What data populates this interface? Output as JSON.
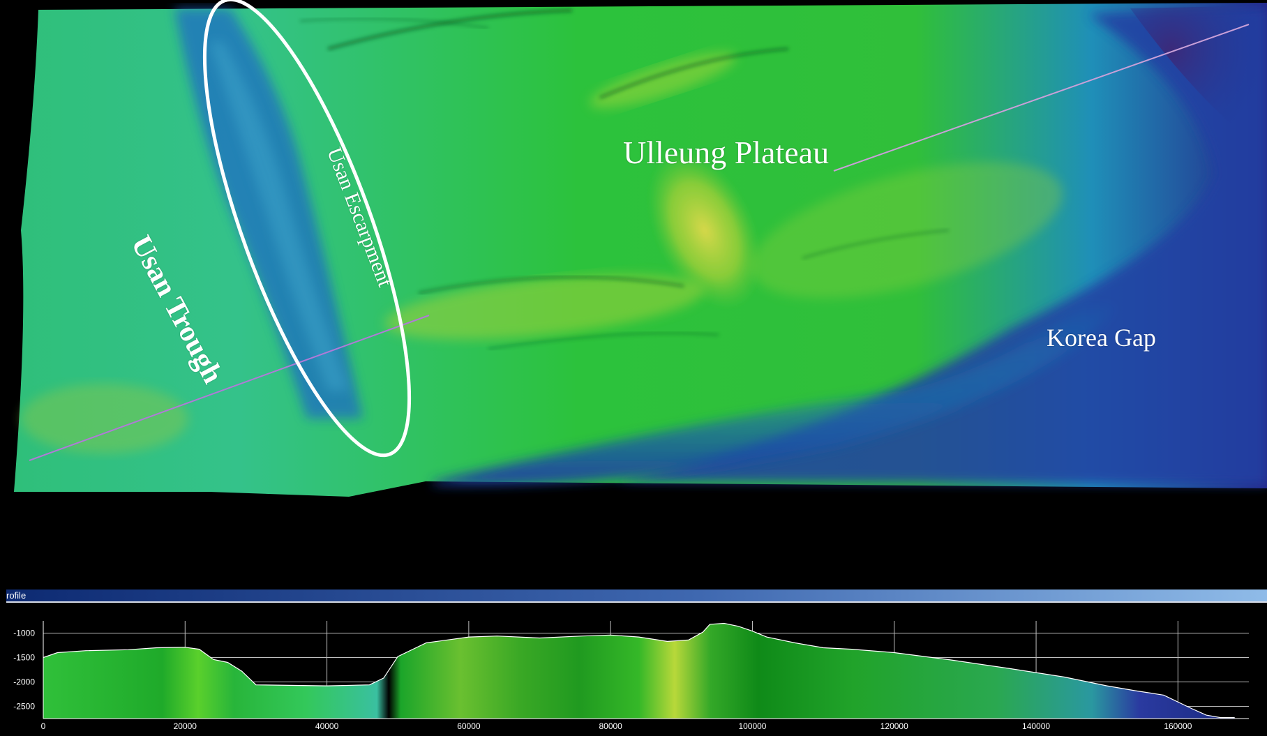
{
  "map": {
    "labels": {
      "plateau": "Ulleung Plateau",
      "gap": "Korea Gap",
      "trough": "Usan Trough",
      "escarpment": "Usan Escarpment"
    },
    "colors": {
      "deep": "#1f2b8a",
      "mid": "#1cb8b0",
      "shallow": "#22c12a",
      "peak": "#c8d83a",
      "line_left": "#b07ad8",
      "line_right": "#c9c39a"
    }
  },
  "profile_panel": {
    "title": "rofile"
  },
  "chart_data": {
    "type": "area",
    "title": "",
    "xlabel": "",
    "ylabel": "",
    "xlim": [
      0,
      170000
    ],
    "ylim": [
      -2750,
      -750
    ],
    "x_ticks": [
      0,
      20000,
      40000,
      60000,
      80000,
      100000,
      120000,
      140000,
      160000
    ],
    "y_ticks": [
      -1000,
      -1500,
      -2000,
      -2500
    ],
    "grid": true,
    "series": [
      {
        "x": [
          0,
          2000,
          6000,
          12000,
          16000,
          20000,
          22000,
          24000,
          26000,
          28000,
          30000,
          40000,
          46000,
          48000,
          50000,
          54000,
          60000,
          64000,
          70000,
          76000,
          80000,
          84000,
          88000,
          91000,
          93000,
          94000,
          96000,
          98000,
          100000,
          102000,
          106000,
          110000,
          114000,
          120000,
          128000,
          136000,
          144000,
          150000,
          154000,
          158000,
          162000,
          164000,
          166000,
          168000
        ],
        "y": [
          -1500,
          -1400,
          -1360,
          -1340,
          -1300,
          -1290,
          -1330,
          -1540,
          -1600,
          -1780,
          -2060,
          -2080,
          -2060,
          -1920,
          -1480,
          -1200,
          -1080,
          -1060,
          -1100,
          -1060,
          -1040,
          -1080,
          -1170,
          -1140,
          -980,
          -820,
          -800,
          -860,
          -960,
          -1080,
          -1200,
          -1300,
          -1330,
          -1400,
          -1550,
          -1720,
          -1900,
          -2080,
          -2180,
          -2270,
          -2550,
          -2680,
          -2730,
          -2730
        ]
      }
    ]
  }
}
